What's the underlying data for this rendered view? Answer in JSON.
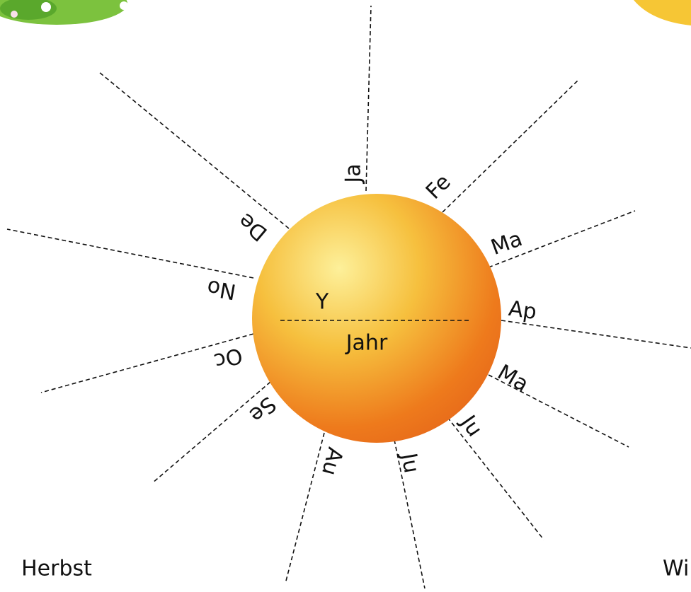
{
  "months": [
    "Ja",
    "Fe",
    "Ma",
    "Ap",
    "Ma",
    "Ju",
    "Ju",
    "Au",
    "Se",
    "Oc",
    "No",
    "De"
  ],
  "center": {
    "top": "Y",
    "bottom": "Jahr"
  },
  "seasons": {
    "left": "Herbst",
    "right": "Wi"
  }
}
